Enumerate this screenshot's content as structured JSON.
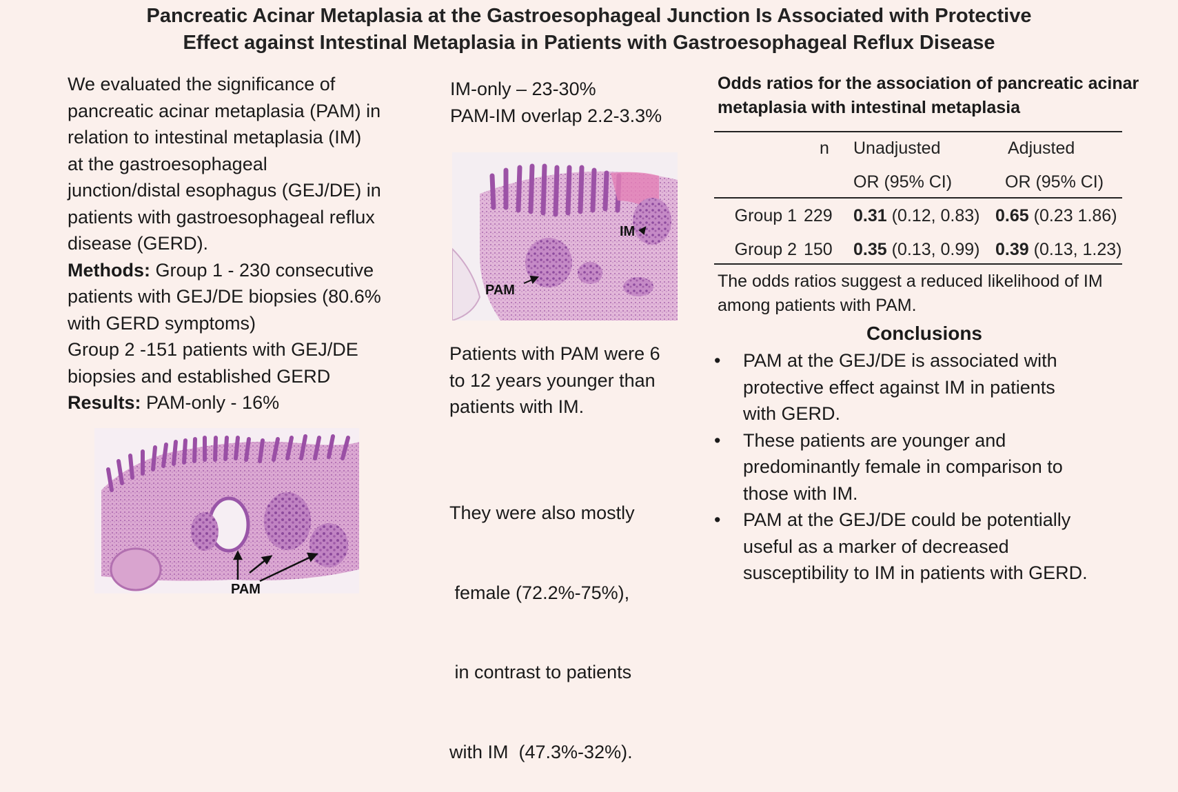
{
  "title": {
    "line1": "Pancreatic Acinar Metaplasia at the Gastroesophageal Junction Is Associated with Protective",
    "line2": "Effect against Intestinal Metaplasia in Patients with Gastroesophageal Reflux Disease"
  },
  "left": {
    "intro_lines": [
      "We evaluated the significance of",
      "pancreatic acinar metaplasia (PAM) in",
      "relation to intestinal metaplasia (IM)",
      "at the gastroesophageal",
      "junction/distal esophagus (GEJ/DE) in",
      "patients with gastroesophageal reflux",
      "disease (GERD)."
    ],
    "methods_label": "Methods:",
    "methods_line1": " Group 1 - 230 consecutive",
    "methods_line2": "patients with GEJ/DE biopsies (80.6%",
    "methods_line3": "with GERD symptoms)",
    "group2_line1": "Group 2 -151 patients with GEJ/DE",
    "group2_line2": "biopsies and established GERD",
    "results_label": "Results:",
    "results_text": " PAM-only - 16%",
    "image_label": "PAM"
  },
  "middle": {
    "line1": "IM-only – 23-30%",
    "line2": "PAM-IM overlap 2.2-3.3%",
    "image_labels": {
      "im": "IM",
      "pam": "PAM"
    },
    "age_lines": [
      "Patients with PAM were 6",
      "to 12 years younger than",
      "patients with IM."
    ],
    "female_lines": [
      "They were also mostly",
      " female (72.2%-75%),",
      " in contrast to patients",
      "with IM  (47.3%-32%)."
    ]
  },
  "right": {
    "table_title_line1": "Odds ratios for the association of pancreatic acinar",
    "table_title_line2": "metaplasia with intestinal metaplasia",
    "table": {
      "header1": [
        "",
        "n",
        "Unadjusted",
        "Adjusted"
      ],
      "header2": [
        "",
        "",
        "OR (95% CI)",
        "OR (95% CI)"
      ],
      "rows": [
        {
          "group": "Group 1",
          "n": "229",
          "unadj_or": "0.31",
          "unadj_ci": " (0.12, 0.83)",
          "adj_or": "0.65",
          "adj_ci": " (0.23 1.86)"
        },
        {
          "group": "Group 2",
          "n": "150",
          "unadj_or": "0.35",
          "unadj_ci": " (0.13, 0.99)",
          "adj_or": "0.39",
          "adj_ci": " (0.13, 1.23)"
        }
      ]
    },
    "note_line1": "The odds ratios suggest a reduced likelihood of IM",
    "note_line2": "among patients with PAM.",
    "conclusions_title": "Conclusions",
    "bullet_symbol": "•",
    "conclusions": [
      [
        "PAM at the GEJ/DE is associated with",
        "protective effect against IM in patients",
        "with GERD."
      ],
      [
        "These patients are younger and",
        "predominantly female in comparison to",
        "those with IM."
      ],
      [
        "PAM at the GEJ/DE could be potentially",
        "useful as a marker of decreased",
        "susceptibility to IM in patients with GERD."
      ]
    ]
  },
  "colors": {
    "background": "#fbf0ec",
    "tissue_pink": "#d58fc6",
    "tissue_purple": "#9a56a8",
    "stroma": "#e8c6e0"
  }
}
